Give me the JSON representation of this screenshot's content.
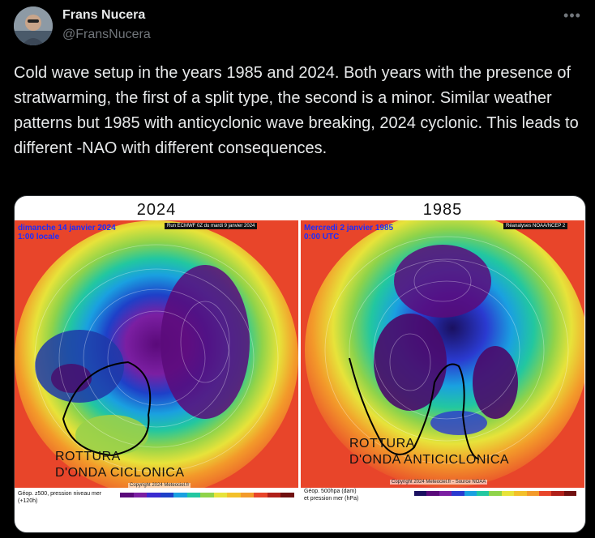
{
  "author": {
    "display_name": "Frans Nucera",
    "handle": "@FransNucera"
  },
  "menu": {
    "more_icon": "more-icon"
  },
  "tweet": {
    "text": "Cold wave setup in the years 1985 and 2024. Both years with the presence of stratwarming, the first of a split type, the second is a minor. Similar weather patterns but 1985 with anticyclonic wave breaking, 2024 cyclonic. This leads to different -NAO with different consequences."
  },
  "media": {
    "left": {
      "year": "2024",
      "date_line1": "dimanche 14 janvier 2024",
      "date_line2": "1:00 locale",
      "run_label": "Run ECMWF 0Z du mardi 9 janvier 2024",
      "overlay_line1": "ROTTURA",
      "overlay_line2": "D'ONDA CICLONICA",
      "copyright": "Copyright 2024 Meteociel.fr",
      "legend_line1": "Géop. z500, pression niveau mer",
      "legend_line2": "(+120h)"
    },
    "right": {
      "year": "1985",
      "date_line1": "Mercredi 2 janvier 1985",
      "date_line2": "0:00 UTC",
      "run_label": "Réanalyses NOAA/NCEP 2",
      "overlay_line1": "ROTTURA",
      "overlay_line2": "D'ONDA ANTICICLONICA",
      "copyright": "Copyright 2024 Meteociel.fr - Source NOAA",
      "legend_line1": "Géop. 500hpa (dam)",
      "legend_line2": "et pression mer (hPa)"
    }
  }
}
